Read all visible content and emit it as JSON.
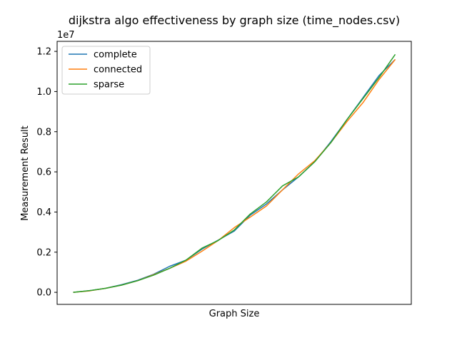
{
  "chart_data": {
    "type": "line",
    "title": "dijkstra algo effectiveness by graph size (time_nodes.csv)",
    "xlabel": "Graph Size",
    "ylabel": "Measurement Result",
    "y_offset_label": "1e7",
    "y_scale": 10000000,
    "ylim": [
      -0.06,
      1.25
    ],
    "xlim": [
      -1,
      21
    ],
    "xticks_visible": false,
    "grid": false,
    "legend": "upper-left",
    "yticks": [
      {
        "value": 0.0,
        "label": "0.0"
      },
      {
        "value": 0.2,
        "label": "0.2"
      },
      {
        "value": 0.4,
        "label": "0.4"
      },
      {
        "value": 0.6,
        "label": "0.6"
      },
      {
        "value": 0.8,
        "label": "0.8"
      },
      {
        "value": 1.0,
        "label": "1.0"
      },
      {
        "value": 1.2,
        "label": "1.2"
      }
    ],
    "x": [
      0,
      1,
      2,
      3,
      4,
      5,
      6,
      7,
      8,
      9,
      10,
      11,
      12,
      13,
      14,
      15,
      16,
      17,
      18,
      19,
      20
    ],
    "series": [
      {
        "name": "complete",
        "color": "#1f77b4",
        "values": [
          0.0,
          0.008,
          0.02,
          0.038,
          0.06,
          0.09,
          0.13,
          0.16,
          0.215,
          0.26,
          0.305,
          0.385,
          0.44,
          0.51,
          0.575,
          0.65,
          0.75,
          0.86,
          0.97,
          1.08,
          1.16
        ]
      },
      {
        "name": "connected",
        "color": "#ff7f0e",
        "values": [
          0.0,
          0.007,
          0.02,
          0.036,
          0.058,
          0.088,
          0.12,
          0.155,
          0.205,
          0.258,
          0.322,
          0.375,
          0.43,
          0.51,
          0.59,
          0.655,
          0.745,
          0.85,
          0.945,
          1.06,
          1.16
        ]
      },
      {
        "name": "sparse",
        "color": "#2ca02c",
        "values": [
          0.0,
          0.008,
          0.02,
          0.036,
          0.058,
          0.086,
          0.12,
          0.16,
          0.22,
          0.258,
          0.31,
          0.39,
          0.45,
          0.53,
          0.575,
          0.65,
          0.745,
          0.86,
          0.965,
          1.07,
          1.185
        ]
      }
    ]
  }
}
